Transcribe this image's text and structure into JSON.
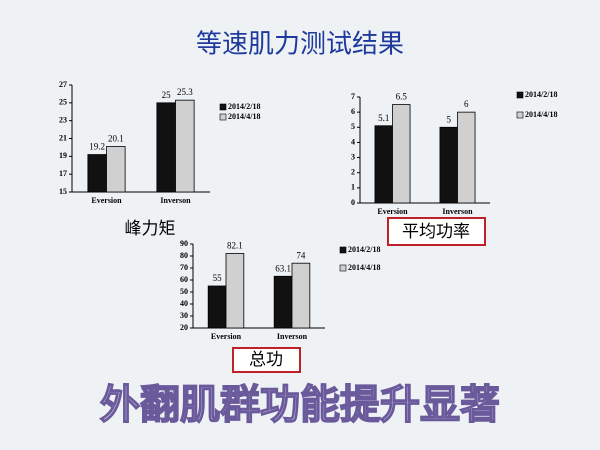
{
  "title": "等速肌力测试结果",
  "footer": "外翻肌群功能提升显著",
  "chart_data": [
    {
      "type": "bar",
      "title": "峰力矩",
      "categories": [
        "Eversion",
        "Inverson"
      ],
      "series": [
        {
          "name": "2014/2/18",
          "color": "#111111",
          "values": [
            19.2,
            25
          ]
        },
        {
          "name": "2014/4/18",
          "color": "#d0d0d0",
          "values": [
            20.1,
            25.3
          ]
        }
      ],
      "ylim": [
        15,
        27
      ],
      "yticks": [
        15,
        17,
        19,
        21,
        23,
        25,
        27
      ]
    },
    {
      "type": "bar",
      "title": "平均功率",
      "categories": [
        "Eversion",
        "Inverson"
      ],
      "series": [
        {
          "name": "2014/2/18",
          "color": "#111111",
          "values": [
            5.1,
            5
          ]
        },
        {
          "name": "2014/4/18",
          "color": "#d0d0d0",
          "values": [
            6.5,
            6
          ]
        }
      ],
      "ylim": [
        0,
        7
      ],
      "yticks": [
        0,
        1,
        2,
        3,
        4,
        5,
        6,
        7
      ]
    },
    {
      "type": "bar",
      "title": "总功",
      "categories": [
        "Eversion",
        "Inverson"
      ],
      "series": [
        {
          "name": "2014/2/18",
          "color": "#111111",
          "values": [
            55,
            63.1
          ]
        },
        {
          "name": "2014/4/18",
          "color": "#d0d0d0",
          "values": [
            82.1,
            74
          ]
        }
      ],
      "ylim": [
        20,
        90
      ],
      "yticks": [
        20,
        30,
        40,
        50,
        60,
        70,
        80,
        90
      ]
    }
  ]
}
